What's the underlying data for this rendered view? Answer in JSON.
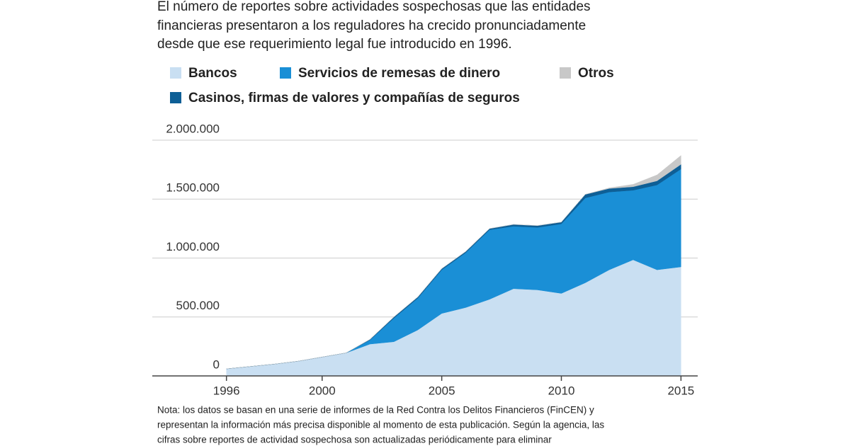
{
  "chart_data": {
    "type": "stacked_area",
    "title_lines": [
      "El número de reportes sobre actividades sospechosas que las entidades",
      "financieras presentaron a los reguladores ha crecido pronunciadamente",
      "desde que ese requerimiento legal fue introducido en 1996."
    ],
    "note_lines": [
      "Nota: los datos se basan en una serie de informes de la Red Contra los Delitos Financieros (FinCEN) y",
      "representan la información más precisa disponible al momento de esta publicación. Según la agencia, las",
      "cifras sobre reportes de actividad sospechosa son actualizadas periódicamente para eliminar"
    ],
    "x": [
      1996,
      1997,
      1998,
      1999,
      2000,
      2001,
      2002,
      2003,
      2004,
      2005,
      2006,
      2007,
      2008,
      2009,
      2010,
      2011,
      2012,
      2013,
      2014,
      2015
    ],
    "series": [
      {
        "name": "Bancos",
        "color": "#c9dff2",
        "values": [
          60000,
          80000,
          100000,
          125000,
          160000,
          195000,
          270000,
          290000,
          390000,
          530000,
          580000,
          650000,
          740000,
          730000,
          700000,
          790000,
          900000,
          985000,
          900000,
          925000
        ]
      },
      {
        "name": "Servicios de remesas de dinero",
        "color": "#1a8fd6",
        "values": [
          0,
          0,
          0,
          0,
          0,
          0,
          35000,
          200000,
          270000,
          370000,
          465000,
          590000,
          530000,
          530000,
          590000,
          720000,
          660000,
          590000,
          720000,
          830000
        ]
      },
      {
        "name": "Otros",
        "color": "#c8c8c8",
        "values": [
          0,
          0,
          0,
          0,
          0,
          0,
          0,
          0,
          0,
          0,
          0,
          0,
          0,
          0,
          0,
          0,
          5000,
          20000,
          50000,
          75000
        ]
      },
      {
        "name": "Casinos, firmas de valores y compañías de seguros",
        "color": "#0e5f96",
        "values": [
          0,
          0,
          0,
          0,
          0,
          0,
          5000,
          10000,
          10000,
          10000,
          10000,
          10000,
          15000,
          15000,
          15000,
          30000,
          30000,
          30000,
          35000,
          40000
        ]
      }
    ],
    "stack_order": [
      0,
      1,
      3,
      2
    ],
    "xlim": [
      1992.9,
      2015.7
    ],
    "xticks": [
      1996,
      2000,
      2005,
      2010,
      2015
    ],
    "ylim": [
      0,
      2000000
    ],
    "yticks": [
      0,
      {
        "value": 500000,
        "label": "500.000"
      },
      {
        "value": 1000000,
        "label": "1.000.000"
      },
      {
        "value": 1500000,
        "label": "1.500.000"
      },
      {
        "value": 2000000,
        "label": "2.000.000"
      }
    ],
    "grid": true
  }
}
